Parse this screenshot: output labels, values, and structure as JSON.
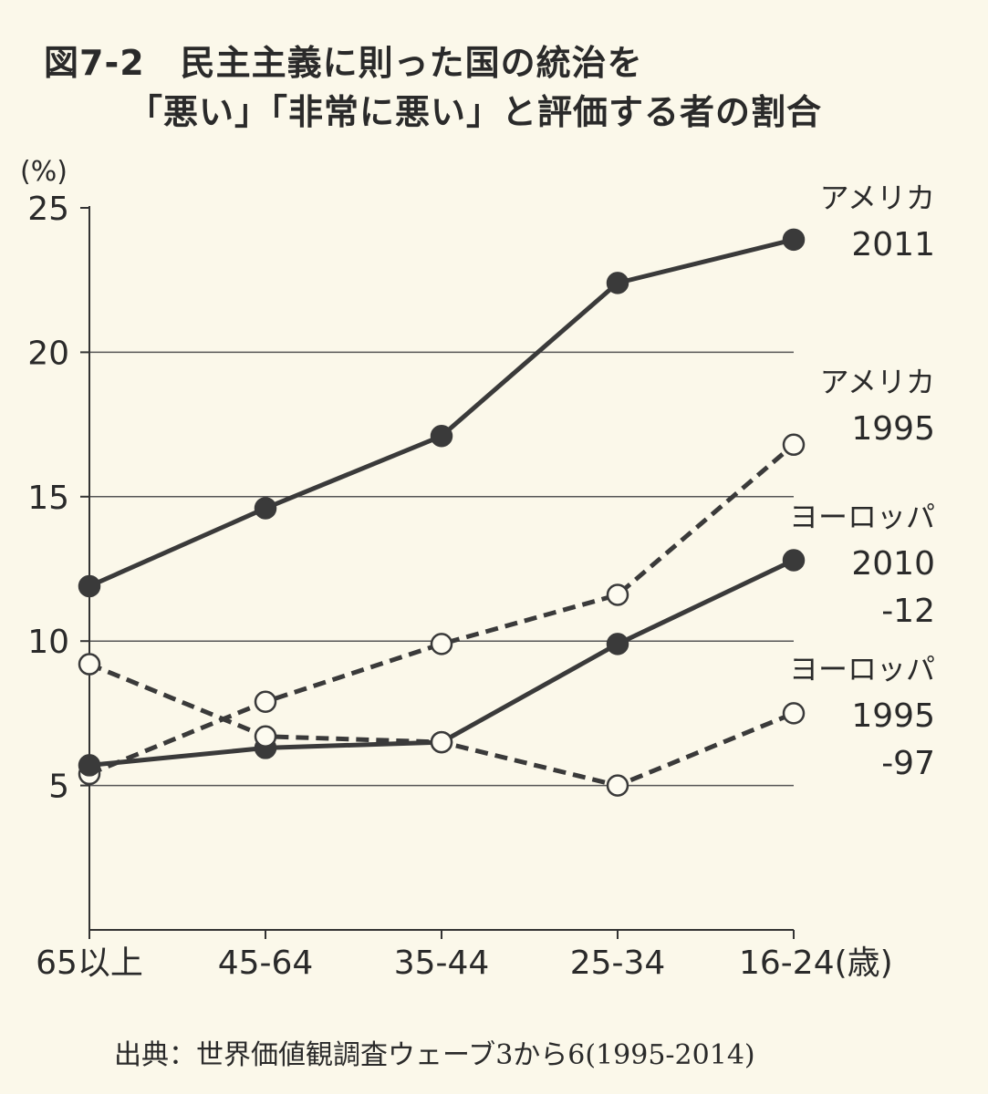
{
  "title": {
    "line1": "図7-2　民主主義に則った国の統治を",
    "line2": "「悪い」「非常に悪い」と評価する者の割合"
  },
  "source": "出典：世界価値観調査ウェーブ3から6(1995-2014)",
  "chart_data": {
    "type": "line",
    "ylabel": "(%)",
    "categories": [
      "65以上",
      "45-64",
      "35-44",
      "25-34",
      "16-24(歳)"
    ],
    "ylim": [
      0,
      25
    ],
    "yticks": [
      5,
      10,
      15,
      20,
      25
    ],
    "grid": true,
    "series": [
      {
        "label_lines": [
          "アメリカ",
          "2011"
        ],
        "values": [
          11.9,
          14.6,
          17.1,
          22.4,
          23.9
        ],
        "style": "solid",
        "marker": "filled"
      },
      {
        "label_lines": [
          "アメリカ",
          "1995"
        ],
        "values": [
          5.4,
          7.9,
          9.9,
          11.6,
          16.8
        ],
        "style": "dashed",
        "marker": "open"
      },
      {
        "label_lines": [
          "ヨーロッパ",
          "2010",
          "-12"
        ],
        "values": [
          5.7,
          6.3,
          6.5,
          9.9,
          12.8
        ],
        "style": "solid",
        "marker": "filled"
      },
      {
        "label_lines": [
          "ヨーロッパ",
          "1995",
          "-97"
        ],
        "values": [
          9.2,
          6.7,
          6.5,
          5.0,
          7.5
        ],
        "style": "dashed",
        "marker": "open"
      }
    ]
  }
}
